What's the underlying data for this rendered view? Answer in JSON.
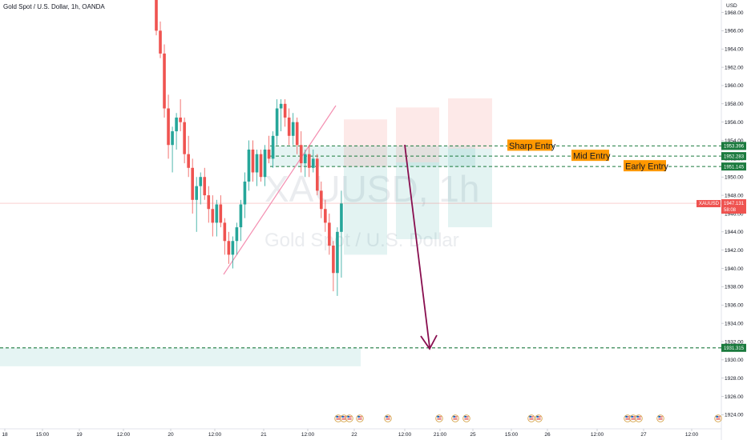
{
  "header": {
    "title": "Gold Spot / U.S. Dollar, 1h, OANDA"
  },
  "watermark": {
    "symbol": "XAUUSD, 1h",
    "name": "Gold Spot / U.S. Dollar"
  },
  "currency_label": "USD",
  "price_tag": {
    "symbol": "XAUUSD",
    "price": "1947.131",
    "countdown": "58:08"
  },
  "colors": {
    "up": "#26a69a",
    "down": "#ef5350",
    "entry_line": "#1b7a3e",
    "entry_tag": "#1b7a3e",
    "annotation_bg": "#ff9800",
    "arrow": "#880e4f",
    "trendline": "#f48fb1",
    "tp_zone": "#26a69a",
    "sl_zone": "#ef5350",
    "price_line": "#ef5350"
  },
  "chart_data": {
    "type": "candlestick",
    "title": "Gold Spot / U.S. Dollar, 1h, OANDA",
    "ylim": [
      1923,
      1969
    ],
    "y_ticks": [
      1924,
      1926,
      1928,
      1930,
      1932,
      1934,
      1936,
      1938,
      1940,
      1942,
      1944,
      1946,
      1948,
      1950,
      1952,
      1954,
      1956,
      1958,
      1960,
      1962,
      1964,
      1966,
      1968
    ],
    "x_ticks": [
      "18",
      "15:00",
      "19",
      "12:00",
      "20",
      "12:00",
      "21",
      "12:00",
      "22",
      "12:00",
      "21:00",
      "25",
      "15:00",
      "26",
      "12:00",
      "27",
      "12:00"
    ],
    "candles": [
      {
        "o": 1969.5,
        "h": 1970.0,
        "l": 1965.5,
        "c": 1966.0
      },
      {
        "o": 1966.0,
        "h": 1967.0,
        "l": 1963.0,
        "c": 1963.5
      },
      {
        "o": 1963.5,
        "h": 1964.5,
        "l": 1956.5,
        "c": 1957.5
      },
      {
        "o": 1957.5,
        "h": 1959.0,
        "l": 1952.0,
        "c": 1953.5
      },
      {
        "o": 1953.5,
        "h": 1955.5,
        "l": 1950.5,
        "c": 1955.0
      },
      {
        "o": 1955.0,
        "h": 1957.0,
        "l": 1953.0,
        "c": 1956.5
      },
      {
        "o": 1956.5,
        "h": 1958.5,
        "l": 1955.0,
        "c": 1956.0
      },
      {
        "o": 1956.0,
        "h": 1956.5,
        "l": 1951.5,
        "c": 1952.5
      },
      {
        "o": 1952.5,
        "h": 1954.5,
        "l": 1950.0,
        "c": 1951.0
      },
      {
        "o": 1951.0,
        "h": 1952.0,
        "l": 1946.0,
        "c": 1947.5
      },
      {
        "o": 1947.5,
        "h": 1950.0,
        "l": 1944.0,
        "c": 1949.0
      },
      {
        "o": 1949.0,
        "h": 1950.5,
        "l": 1947.0,
        "c": 1950.0
      },
      {
        "o": 1950.0,
        "h": 1951.0,
        "l": 1947.5,
        "c": 1948.0
      },
      {
        "o": 1948.0,
        "h": 1949.0,
        "l": 1945.0,
        "c": 1946.5
      },
      {
        "o": 1946.5,
        "h": 1948.0,
        "l": 1943.5,
        "c": 1945.0
      },
      {
        "o": 1945.0,
        "h": 1947.5,
        "l": 1943.5,
        "c": 1947.0
      },
      {
        "o": 1947.0,
        "h": 1948.0,
        "l": 1944.5,
        "c": 1945.0
      },
      {
        "o": 1945.0,
        "h": 1945.5,
        "l": 1941.5,
        "c": 1943.0
      },
      {
        "o": 1943.0,
        "h": 1944.0,
        "l": 1940.5,
        "c": 1941.5
      },
      {
        "o": 1941.5,
        "h": 1943.5,
        "l": 1940.0,
        "c": 1943.0
      },
      {
        "o": 1943.0,
        "h": 1945.0,
        "l": 1941.5,
        "c": 1944.5
      },
      {
        "o": 1944.5,
        "h": 1947.5,
        "l": 1943.0,
        "c": 1947.0
      },
      {
        "o": 1947.0,
        "h": 1950.5,
        "l": 1945.5,
        "c": 1949.5
      },
      {
        "o": 1949.5,
        "h": 1954.0,
        "l": 1948.5,
        "c": 1953.0
      },
      {
        "o": 1953.0,
        "h": 1954.0,
        "l": 1949.5,
        "c": 1950.5
      },
      {
        "o": 1950.5,
        "h": 1953.0,
        "l": 1949.0,
        "c": 1952.5
      },
      {
        "o": 1952.5,
        "h": 1953.0,
        "l": 1949.5,
        "c": 1950.0
      },
      {
        "o": 1950.0,
        "h": 1953.5,
        "l": 1949.0,
        "c": 1953.0
      },
      {
        "o": 1953.0,
        "h": 1954.5,
        "l": 1951.5,
        "c": 1952.0
      },
      {
        "o": 1952.0,
        "h": 1955.0,
        "l": 1951.0,
        "c": 1954.5
      },
      {
        "o": 1954.5,
        "h": 1958.5,
        "l": 1953.5,
        "c": 1957.5
      },
      {
        "o": 1957.5,
        "h": 1958.5,
        "l": 1955.0,
        "c": 1958.0
      },
      {
        "o": 1958.0,
        "h": 1958.5,
        "l": 1955.5,
        "c": 1956.5
      },
      {
        "o": 1956.5,
        "h": 1957.5,
        "l": 1953.5,
        "c": 1954.5
      },
      {
        "o": 1954.5,
        "h": 1957.0,
        "l": 1953.5,
        "c": 1956.0
      },
      {
        "o": 1956.0,
        "h": 1956.5,
        "l": 1952.5,
        "c": 1953.5
      },
      {
        "o": 1953.5,
        "h": 1955.0,
        "l": 1950.5,
        "c": 1951.5
      },
      {
        "o": 1951.5,
        "h": 1953.0,
        "l": 1950.0,
        "c": 1952.5
      },
      {
        "o": 1952.5,
        "h": 1953.5,
        "l": 1950.0,
        "c": 1951.0
      },
      {
        "o": 1951.0,
        "h": 1953.0,
        "l": 1950.5,
        "c": 1952.0
      },
      {
        "o": 1952.0,
        "h": 1952.5,
        "l": 1948.0,
        "c": 1948.5
      },
      {
        "o": 1948.5,
        "h": 1949.5,
        "l": 1945.5,
        "c": 1946.5
      },
      {
        "o": 1946.5,
        "h": 1947.5,
        "l": 1944.0,
        "c": 1945.0
      },
      {
        "o": 1945.0,
        "h": 1946.0,
        "l": 1941.5,
        "c": 1942.5
      },
      {
        "o": 1942.5,
        "h": 1943.0,
        "l": 1937.5,
        "c": 1939.5
      },
      {
        "o": 1939.5,
        "h": 1944.5,
        "l": 1937.0,
        "c": 1944.0
      },
      {
        "o": 1944.0,
        "h": 1948.5,
        "l": 1939.0,
        "c": 1947.1
      }
    ],
    "entry_levels": [
      {
        "label": "Sharp Entry",
        "price": 1953.396,
        "tag": "1953.396"
      },
      {
        "label": "Mid Entry",
        "price": 1952.283,
        "tag": "1952.283"
      },
      {
        "label": "Early Entry",
        "price": 1951.145,
        "tag": "1951.145"
      }
    ],
    "target_level": {
      "price": 1931.315,
      "tag": "1931.315"
    },
    "current_price": 1947.131
  }
}
